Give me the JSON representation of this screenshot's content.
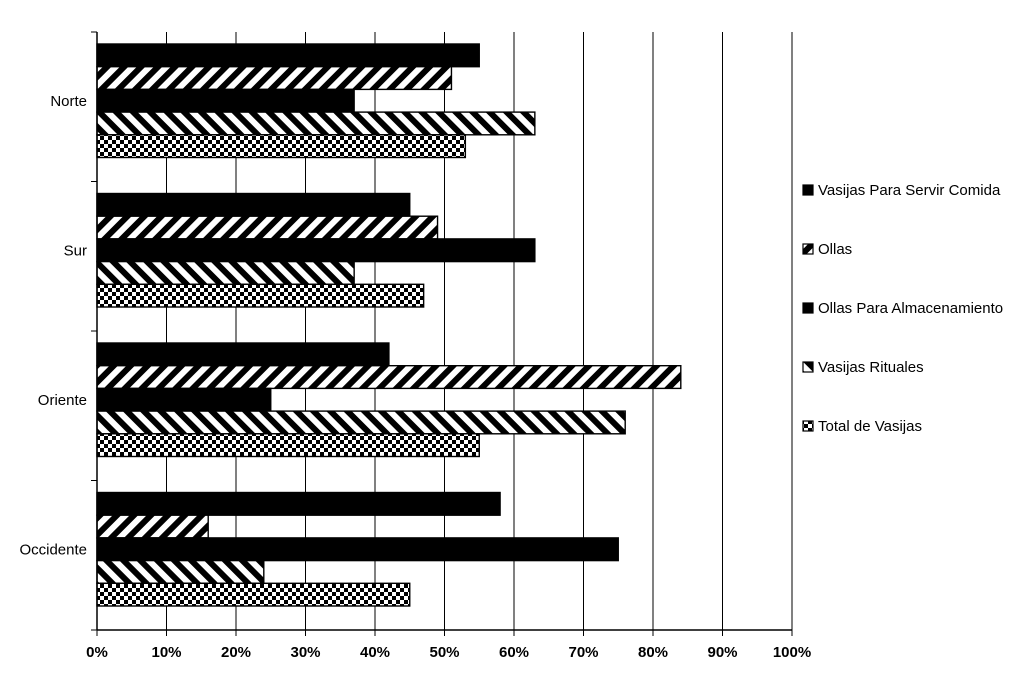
{
  "chart_data": {
    "type": "bar",
    "orientation": "horizontal",
    "categories": [
      "Norte",
      "Sur",
      "Oriente",
      "Occidente"
    ],
    "series": [
      {
        "name": "Vasijas Para Servir Comida",
        "pattern": "solid-black",
        "values": [
          55,
          45,
          42,
          58
        ]
      },
      {
        "name": "Ollas",
        "pattern": "diagonal-backslash",
        "values": [
          51,
          49,
          84,
          16
        ]
      },
      {
        "name": "Ollas Para Almacenamiento",
        "pattern": "solid-black",
        "values": [
          37,
          63,
          25,
          75
        ]
      },
      {
        "name": "Vasijas Rituales",
        "pattern": "diagonal-slash",
        "values": [
          63,
          37,
          76,
          24
        ]
      },
      {
        "name": "Total de Vasijas",
        "pattern": "checker",
        "values": [
          53,
          47,
          55,
          45
        ]
      }
    ],
    "x_ticks": [
      "0%",
      "10%",
      "20%",
      "30%",
      "40%",
      "50%",
      "60%",
      "70%",
      "80%",
      "90%",
      "100%"
    ],
    "xlim": [
      0,
      100
    ],
    "x_unit": "%",
    "grid": true,
    "legend_position": "right",
    "title": "",
    "xlabel": "",
    "ylabel": ""
  }
}
